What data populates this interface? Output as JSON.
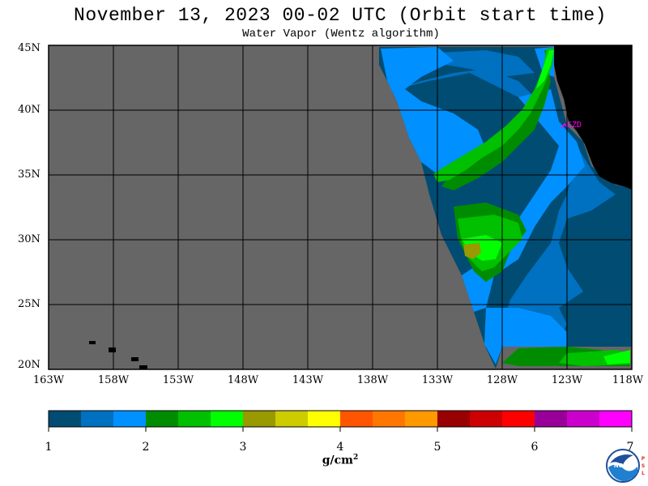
{
  "title": "November 13, 2023  00-02 UTC  (Orbit start time)",
  "subtitle": "Water Vapor (Wentz algorithm)",
  "y_axis_labels": [
    "45N",
    "40N",
    "35N",
    "30N",
    "25N",
    "20N"
  ],
  "x_axis_labels": [
    "163W",
    "158W",
    "153W",
    "148W",
    "143W",
    "138W",
    "133W",
    "128W",
    "123W",
    "118W"
  ],
  "station_label": "CZD",
  "colorbar": {
    "tick_labels": [
      "1",
      "2",
      "3",
      "4",
      "5",
      "6",
      "7"
    ],
    "unit_base": "g/cm",
    "unit_exp": "2",
    "colors": [
      "#004c73",
      "#0070c0",
      "#0090ff",
      "#008c00",
      "#00c000",
      "#00ff00",
      "#999900",
      "#cccc00",
      "#ffff00",
      "#ff5500",
      "#ff7700",
      "#ff9900",
      "#990000",
      "#cc0000",
      "#ff0000",
      "#990099",
      "#cc00cc",
      "#ff00ff"
    ]
  },
  "colors": {
    "no_data": "#666666",
    "land": "#000000",
    "frame": "#000000",
    "station": "#ff00ff"
  },
  "logo": {
    "text": "NOAA",
    "side_text": "PSL"
  }
}
